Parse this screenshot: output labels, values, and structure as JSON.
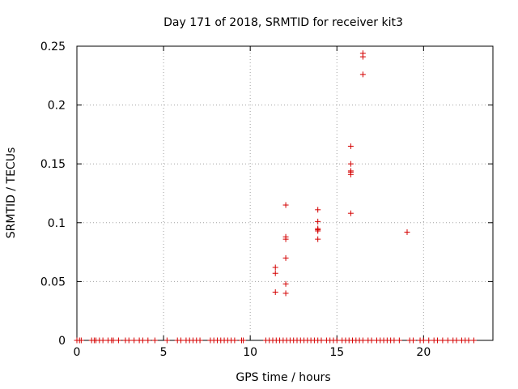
{
  "chart_data": {
    "type": "scatter",
    "title": "Day 171 of 2018, SRMTID for receiver kit3",
    "xlabel": "GPS time / hours",
    "ylabel": "SRMTID / TECUs",
    "xlim": [
      0,
      24
    ],
    "ylim": [
      0,
      0.25
    ],
    "x_ticks": [
      0,
      5,
      10,
      15,
      20
    ],
    "x_tick_labels": [
      "0",
      "5",
      "10",
      "15",
      "20"
    ],
    "y_ticks": [
      0,
      0.05,
      0.1,
      0.15,
      0.2,
      0.25
    ],
    "y_tick_labels": [
      "0",
      "0.05",
      "0.1",
      "0.15",
      "0.2",
      "0.25"
    ],
    "grid": true,
    "marker": "+",
    "marker_color": "#d40000",
    "series": [
      {
        "points": [
          [
            0.0,
            0
          ],
          [
            0.15,
            0
          ],
          [
            0.25,
            0
          ],
          [
            0.85,
            0
          ],
          [
            1.0,
            0
          ],
          [
            1.1,
            0
          ],
          [
            1.3,
            0
          ],
          [
            1.5,
            0
          ],
          [
            1.8,
            0
          ],
          [
            2.0,
            0
          ],
          [
            2.1,
            0
          ],
          [
            2.4,
            0
          ],
          [
            2.8,
            0
          ],
          [
            3.0,
            0
          ],
          [
            3.3,
            0
          ],
          [
            3.6,
            0
          ],
          [
            3.8,
            0
          ],
          [
            4.1,
            0
          ],
          [
            4.5,
            0
          ],
          [
            5.2,
            0
          ],
          [
            5.8,
            0
          ],
          [
            6.0,
            0
          ],
          [
            6.3,
            0
          ],
          [
            6.5,
            0
          ],
          [
            6.7,
            0
          ],
          [
            6.9,
            0
          ],
          [
            7.1,
            0
          ],
          [
            7.7,
            0
          ],
          [
            7.9,
            0
          ],
          [
            8.1,
            0
          ],
          [
            8.3,
            0
          ],
          [
            8.5,
            0
          ],
          [
            8.7,
            0
          ],
          [
            8.9,
            0
          ],
          [
            9.1,
            0
          ],
          [
            9.5,
            0
          ],
          [
            9.6,
            0
          ],
          [
            10.9,
            0
          ],
          [
            11.1,
            0
          ],
          [
            11.3,
            0
          ],
          [
            11.5,
            0
          ],
          [
            11.7,
            0
          ],
          [
            11.9,
            0
          ],
          [
            12.1,
            0
          ],
          [
            12.3,
            0
          ],
          [
            12.5,
            0
          ],
          [
            12.7,
            0
          ],
          [
            12.9,
            0
          ],
          [
            13.1,
            0
          ],
          [
            13.3,
            0
          ],
          [
            13.5,
            0
          ],
          [
            13.7,
            0
          ],
          [
            13.9,
            0
          ],
          [
            14.1,
            0
          ],
          [
            14.4,
            0
          ],
          [
            14.6,
            0
          ],
          [
            14.8,
            0
          ],
          [
            15.0,
            0
          ],
          [
            15.3,
            0
          ],
          [
            15.5,
            0
          ],
          [
            15.7,
            0
          ],
          [
            15.9,
            0
          ],
          [
            16.1,
            0
          ],
          [
            16.3,
            0
          ],
          [
            16.5,
            0
          ],
          [
            16.8,
            0
          ],
          [
            17.0,
            0
          ],
          [
            17.3,
            0
          ],
          [
            17.5,
            0
          ],
          [
            17.7,
            0
          ],
          [
            17.9,
            0
          ],
          [
            18.1,
            0
          ],
          [
            18.3,
            0
          ],
          [
            18.6,
            0
          ],
          [
            19.2,
            0
          ],
          [
            19.4,
            0
          ],
          [
            19.8,
            0
          ],
          [
            20.0,
            0
          ],
          [
            20.3,
            0
          ],
          [
            20.6,
            0
          ],
          [
            20.8,
            0
          ],
          [
            21.1,
            0
          ],
          [
            21.4,
            0
          ],
          [
            21.7,
            0
          ],
          [
            21.9,
            0
          ],
          [
            22.2,
            0
          ],
          [
            22.4,
            0
          ],
          [
            22.6,
            0
          ],
          [
            22.9,
            0
          ],
          [
            11.45,
            0.041
          ],
          [
            11.45,
            0.057
          ],
          [
            11.45,
            0.062
          ],
          [
            12.05,
            0.04
          ],
          [
            12.05,
            0.048
          ],
          [
            12.05,
            0.07
          ],
          [
            12.05,
            0.086
          ],
          [
            12.05,
            0.088
          ],
          [
            12.05,
            0.115
          ],
          [
            13.9,
            0.086
          ],
          [
            13.9,
            0.093
          ],
          [
            13.9,
            0.094
          ],
          [
            13.9,
            0.095
          ],
          [
            13.9,
            0.101
          ],
          [
            13.9,
            0.111
          ],
          [
            15.8,
            0.108
          ],
          [
            15.8,
            0.141
          ],
          [
            15.8,
            0.143
          ],
          [
            15.8,
            0.144
          ],
          [
            15.8,
            0.15
          ],
          [
            15.8,
            0.165
          ],
          [
            16.5,
            0.226
          ],
          [
            16.5,
            0.241
          ],
          [
            16.5,
            0.244
          ],
          [
            19.05,
            0.092
          ]
        ]
      }
    ]
  }
}
